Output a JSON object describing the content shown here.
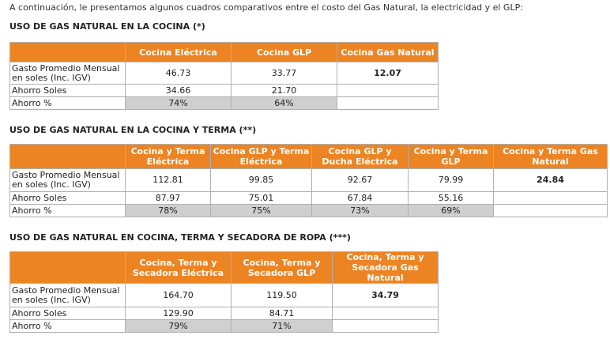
{
  "intro": "A continuación, le presentamos algunos cuadros comparativos entre el costo del Gas Natural, la electricidad y el GLP:",
  "tables": [
    {
      "title": "USO DE GAS NATURAL EN LA COCINA (*)",
      "headers": [
        "Cocina Eléctrica",
        "Cocina GLP",
        "Cocina Gas Natural"
      ],
      "rows": [
        {
          "label": "Gasto Promedio Mensual en soles (Inc. IGV)",
          "values": [
            "46.73",
            "33.77",
            "12.07"
          ]
        },
        {
          "label": "Ahorro Soles",
          "values": [
            "34.66",
            "21.70",
            ""
          ]
        },
        {
          "label": "Ahorro %",
          "values": [
            "74%",
            "64%",
            ""
          ]
        }
      ]
    },
    {
      "title": "USO DE GAS NATURAL EN LA COCINA Y TERMA (**)",
      "headers": [
        "Cocina y Terma Eléctrica",
        "Cocina GLP y Terma Eléctrica",
        "Cocina GLP y Ducha Eléctrica",
        "Cocina y Terma GLP",
        "Cocina y Terma Gas Natural"
      ],
      "rows": [
        {
          "label": "Gasto Promedio Mensual en soles (Inc. IGV)",
          "values": [
            "112.81",
            "99.85",
            "92.67",
            "79.99",
            "24.84"
          ]
        },
        {
          "label": "Ahorro Soles",
          "values": [
            "87.97",
            "75.01",
            "67.84",
            "55.16",
            ""
          ]
        },
        {
          "label": "Ahorro %",
          "values": [
            "78%",
            "75%",
            "73%",
            "69%",
            ""
          ]
        }
      ]
    },
    {
      "title": "USO DE GAS NATURAL EN COCINA, TERMA Y SECADORA DE ROPA (***)",
      "headers": [
        "Cocina, Terma y Secadora Eléctrica",
        "Cocina, Terma y Secadora GLP",
        "Cocina, Terma y Secadora Gas Natural"
      ],
      "rows": [
        {
          "label": "Gasto Promedio Mensual en soles (Inc. IGV)",
          "values": [
            "164.70",
            "119.50",
            "34.79"
          ]
        },
        {
          "label": "Ahorro Soles",
          "values": [
            "129.90",
            "84.71",
            ""
          ]
        },
        {
          "label": "Ahorro %",
          "values": [
            "79%",
            "71%",
            ""
          ]
        }
      ]
    }
  ]
}
